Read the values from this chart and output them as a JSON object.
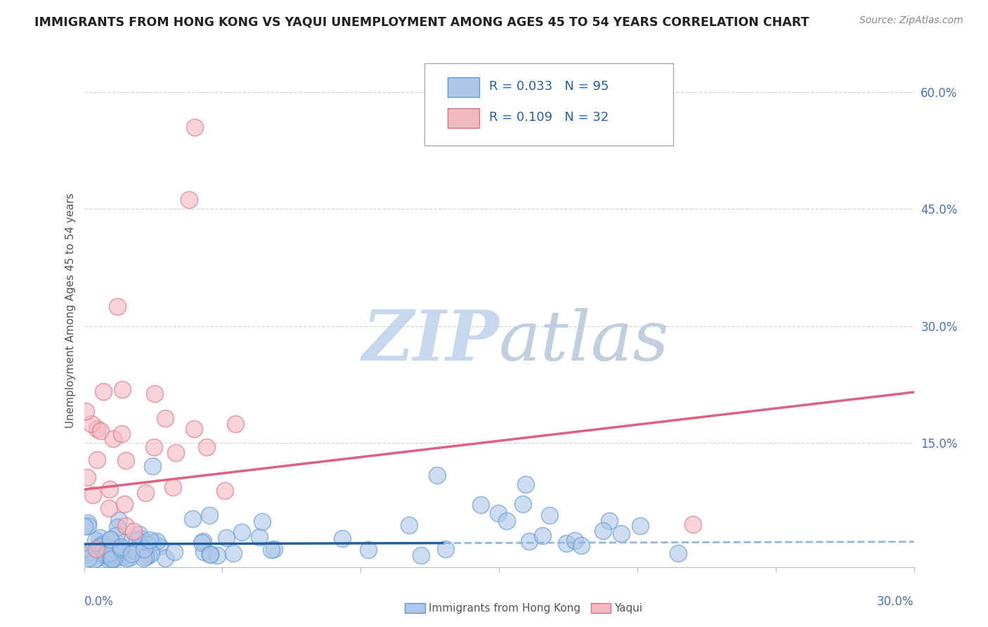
{
  "title": "IMMIGRANTS FROM HONG KONG VS YAQUI UNEMPLOYMENT AMONG AGES 45 TO 54 YEARS CORRELATION CHART",
  "source": "Source: ZipAtlas.com",
  "ylabel": "Unemployment Among Ages 45 to 54 years",
  "xlim": [
    0.0,
    0.3
  ],
  "ylim": [
    -0.01,
    0.65
  ],
  "yticks_right": [
    0.6,
    0.45,
    0.3,
    0.15
  ],
  "ytick_labels_right": [
    "60.0%",
    "45.0%",
    "30.0%",
    "15.0%"
  ],
  "blue_R": "0.033",
  "blue_N": "95",
  "pink_R": "0.109",
  "pink_N": "32",
  "blue_fill": "#aec6e8",
  "blue_edge": "#5b9bd5",
  "pink_fill": "#f4b8c1",
  "pink_edge": "#e07080",
  "blue_trend_solid_color": "#2060a0",
  "blue_trend_dash_color": "#90b8d8",
  "pink_trend_color": "#e06080",
  "watermark_zip_color": "#c5d8ee",
  "watermark_atlas_color": "#c0cfe0",
  "background_color": "#ffffff",
  "grid_color": "#cccccc",
  "title_color": "#222222",
  "source_color": "#888888",
  "axis_label_color": "#4472c4",
  "legend_text_color": "#2060c0",
  "blue_trend_x0": 0.0,
  "blue_trend_x_solid_end": 0.13,
  "blue_trend_x1": 0.3,
  "blue_trend_y0": 0.02,
  "blue_trend_y1": 0.023,
  "pink_trend_x0": 0.0,
  "pink_trend_x1": 0.3,
  "pink_trend_y0": 0.09,
  "pink_trend_y1": 0.215
}
